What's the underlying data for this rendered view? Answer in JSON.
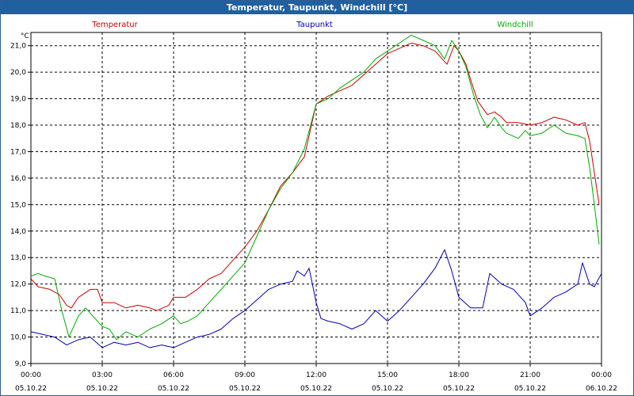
{
  "chart_data": {
    "type": "line",
    "title": "Temperatur, Taupunkt, Windchill [°C]",
    "ylabel": "°C",
    "ylim": [
      9.0,
      21.5
    ],
    "xlim_hours": [
      0,
      24
    ],
    "grid": true,
    "yticks": [
      "9,0",
      "10,0",
      "11,0",
      "12,0",
      "13,0",
      "14,0",
      "15,0",
      "16,0",
      "17,0",
      "18,0",
      "19,0",
      "20,0",
      "21,0"
    ],
    "xticks": [
      {
        "time": "00:00",
        "date": "05.10.22"
      },
      {
        "time": "03:00",
        "date": "05.10.22"
      },
      {
        "time": "06:00",
        "date": "05.10.22"
      },
      {
        "time": "09:00",
        "date": "05.10.22"
      },
      {
        "time": "12:00",
        "date": "05.10.22"
      },
      {
        "time": "15:00",
        "date": "05.10.22"
      },
      {
        "time": "18:00",
        "date": "05.10.22"
      },
      {
        "time": "21:00",
        "date": "05.10.22"
      },
      {
        "time": "00:00",
        "date": "06.10.22"
      }
    ],
    "series": [
      {
        "name": "Temperatur",
        "color": "#cc0000",
        "points": [
          [
            0,
            12.2
          ],
          [
            0.3,
            11.9
          ],
          [
            0.8,
            11.8
          ],
          [
            1.2,
            11.6
          ],
          [
            1.5,
            11.2
          ],
          [
            1.7,
            11.1
          ],
          [
            2.0,
            11.5
          ],
          [
            2.5,
            11.8
          ],
          [
            2.8,
            11.8
          ],
          [
            3.0,
            11.3
          ],
          [
            3.5,
            11.3
          ],
          [
            4.0,
            11.1
          ],
          [
            4.5,
            11.2
          ],
          [
            5.0,
            11.1
          ],
          [
            5.3,
            11.0
          ],
          [
            5.8,
            11.2
          ],
          [
            6.0,
            11.5
          ],
          [
            6.5,
            11.5
          ],
          [
            7.0,
            11.8
          ],
          [
            7.5,
            12.2
          ],
          [
            8.0,
            12.4
          ],
          [
            8.5,
            12.9
          ],
          [
            9.0,
            13.4
          ],
          [
            9.5,
            14.0
          ],
          [
            10.0,
            14.8
          ],
          [
            10.5,
            15.7
          ],
          [
            11.0,
            16.2
          ],
          [
            11.5,
            16.8
          ],
          [
            12.0,
            18.8
          ],
          [
            12.5,
            19.1
          ],
          [
            13.0,
            19.3
          ],
          [
            13.5,
            19.5
          ],
          [
            14.0,
            19.9
          ],
          [
            14.5,
            20.3
          ],
          [
            15.0,
            20.7
          ],
          [
            15.5,
            20.9
          ],
          [
            16.0,
            21.1
          ],
          [
            16.5,
            21.0
          ],
          [
            17.0,
            20.8
          ],
          [
            17.5,
            20.3
          ],
          [
            17.8,
            21.0
          ],
          [
            18.0,
            20.8
          ],
          [
            18.3,
            20.3
          ],
          [
            18.5,
            19.7
          ],
          [
            18.8,
            18.9
          ],
          [
            19.2,
            18.4
          ],
          [
            19.5,
            18.5
          ],
          [
            19.8,
            18.3
          ],
          [
            20.0,
            18.1
          ],
          [
            20.5,
            18.1
          ],
          [
            21.0,
            18.0
          ],
          [
            21.5,
            18.1
          ],
          [
            22.0,
            18.3
          ],
          [
            22.5,
            18.2
          ],
          [
            23.0,
            18.0
          ],
          [
            23.3,
            18.1
          ],
          [
            23.5,
            17.4
          ],
          [
            23.7,
            16.2
          ],
          [
            23.9,
            15.0
          ]
        ]
      },
      {
        "name": "Taupunkt",
        "color": "#0000b0",
        "points": [
          [
            0,
            10.2
          ],
          [
            0.5,
            10.1
          ],
          [
            1.0,
            10.0
          ],
          [
            1.5,
            9.7
          ],
          [
            2.0,
            9.9
          ],
          [
            2.5,
            10.0
          ],
          [
            3.0,
            9.6
          ],
          [
            3.5,
            9.8
          ],
          [
            4.0,
            9.7
          ],
          [
            4.5,
            9.8
          ],
          [
            5.0,
            9.6
          ],
          [
            5.5,
            9.7
          ],
          [
            6.0,
            9.6
          ],
          [
            6.5,
            9.8
          ],
          [
            7.0,
            10.0
          ],
          [
            7.5,
            10.1
          ],
          [
            8.0,
            10.3
          ],
          [
            8.5,
            10.7
          ],
          [
            9.0,
            11.0
          ],
          [
            9.5,
            11.4
          ],
          [
            10.0,
            11.8
          ],
          [
            10.5,
            12.0
          ],
          [
            11.0,
            12.1
          ],
          [
            11.2,
            12.5
          ],
          [
            11.5,
            12.3
          ],
          [
            11.7,
            12.6
          ],
          [
            12.0,
            11.3
          ],
          [
            12.2,
            10.7
          ],
          [
            12.5,
            10.6
          ],
          [
            13.0,
            10.5
          ],
          [
            13.5,
            10.3
          ],
          [
            14.0,
            10.5
          ],
          [
            14.5,
            11.0
          ],
          [
            15.0,
            10.6
          ],
          [
            15.5,
            11.0
          ],
          [
            16.0,
            11.5
          ],
          [
            16.5,
            12.0
          ],
          [
            17.0,
            12.6
          ],
          [
            17.4,
            13.3
          ],
          [
            17.7,
            12.5
          ],
          [
            18.0,
            11.5
          ],
          [
            18.5,
            11.1
          ],
          [
            19.0,
            11.1
          ],
          [
            19.3,
            12.4
          ],
          [
            19.8,
            12.0
          ],
          [
            20.3,
            11.8
          ],
          [
            20.8,
            11.3
          ],
          [
            21.0,
            10.8
          ],
          [
            21.5,
            11.1
          ],
          [
            22.0,
            11.5
          ],
          [
            22.5,
            11.7
          ],
          [
            23.0,
            12.0
          ],
          [
            23.2,
            12.8
          ],
          [
            23.5,
            12.0
          ],
          [
            23.7,
            11.9
          ],
          [
            24.0,
            12.4
          ]
        ]
      },
      {
        "name": "Windchill",
        "color": "#00aa00",
        "points": [
          [
            0,
            12.3
          ],
          [
            0.3,
            12.4
          ],
          [
            0.6,
            12.3
          ],
          [
            1.0,
            12.2
          ],
          [
            1.3,
            11.0
          ],
          [
            1.6,
            10.0
          ],
          [
            2.0,
            10.8
          ],
          [
            2.3,
            11.1
          ],
          [
            2.6,
            10.8
          ],
          [
            3.0,
            10.4
          ],
          [
            3.3,
            10.3
          ],
          [
            3.6,
            9.9
          ],
          [
            4.0,
            10.2
          ],
          [
            4.5,
            10.0
          ],
          [
            5.0,
            10.3
          ],
          [
            5.5,
            10.5
          ],
          [
            6.0,
            10.8
          ],
          [
            6.3,
            10.5
          ],
          [
            6.6,
            10.6
          ],
          [
            7.0,
            10.8
          ],
          [
            7.5,
            11.3
          ],
          [
            8.0,
            11.8
          ],
          [
            8.5,
            12.3
          ],
          [
            9.0,
            12.8
          ],
          [
            9.5,
            13.8
          ],
          [
            10.0,
            14.8
          ],
          [
            10.5,
            15.6
          ],
          [
            11.0,
            16.2
          ],
          [
            11.5,
            17.1
          ],
          [
            12.0,
            18.8
          ],
          [
            12.5,
            19.0
          ],
          [
            13.0,
            19.4
          ],
          [
            13.5,
            19.7
          ],
          [
            14.0,
            20.0
          ],
          [
            14.5,
            20.5
          ],
          [
            15.0,
            20.8
          ],
          [
            15.5,
            21.1
          ],
          [
            16.0,
            21.4
          ],
          [
            16.5,
            21.2
          ],
          [
            17.0,
            21.0
          ],
          [
            17.4,
            20.5
          ],
          [
            17.7,
            21.2
          ],
          [
            18.0,
            20.8
          ],
          [
            18.3,
            20.2
          ],
          [
            18.6,
            19.2
          ],
          [
            18.9,
            18.4
          ],
          [
            19.2,
            17.9
          ],
          [
            19.5,
            18.3
          ],
          [
            19.8,
            17.9
          ],
          [
            20.0,
            17.7
          ],
          [
            20.5,
            17.5
          ],
          [
            20.8,
            17.8
          ],
          [
            21.0,
            17.6
          ],
          [
            21.5,
            17.7
          ],
          [
            22.0,
            18.0
          ],
          [
            22.5,
            17.7
          ],
          [
            23.0,
            17.6
          ],
          [
            23.3,
            17.5
          ],
          [
            23.5,
            16.4
          ],
          [
            23.7,
            15.0
          ],
          [
            23.9,
            13.5
          ]
        ]
      }
    ]
  }
}
